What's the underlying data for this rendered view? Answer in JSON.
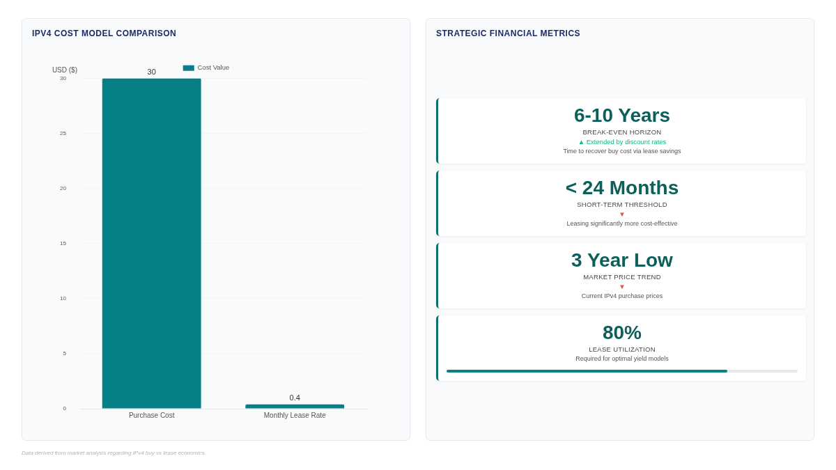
{
  "chart_data": [
    {
      "type": "bar",
      "title": "IPV4 COST MODEL COMPARISON",
      "ylabel": "USD ($)",
      "categories": [
        "Purchase Cost",
        "Monthly Lease Rate"
      ],
      "series": [
        {
          "name": "Cost Value",
          "color": "#067f87",
          "values": [
            30,
            0.4
          ]
        }
      ],
      "ylim": [
        0,
        30
      ],
      "yticks": [
        0,
        5,
        10,
        15,
        20,
        25,
        30
      ],
      "grid": "y",
      "legend": "top",
      "data_labels": true,
      "annotations": [
        "Data derived from market analysis regarding IPv4 buy vs lease economics."
      ]
    },
    {
      "type": "other",
      "title": "STRATEGIC FINANCIAL METRICS",
      "annotations": [
        "6-10 Years",
        "BREAK-EVEN HORIZON",
        "▲ Extended by discount rates",
        "Time to recover buy cost via lease savings",
        "< 24 Months",
        "SHORT-TERM THRESHOLD",
        "▼",
        "Leasing significantly more cost-effective",
        "3 Year Low",
        "MARKET PRICE TREND",
        "▼",
        "Current IPv4 purchase prices",
        "80%",
        "LEASE UTILIZATION",
        "Required for optimal yield models"
      ]
    }
  ]
}
